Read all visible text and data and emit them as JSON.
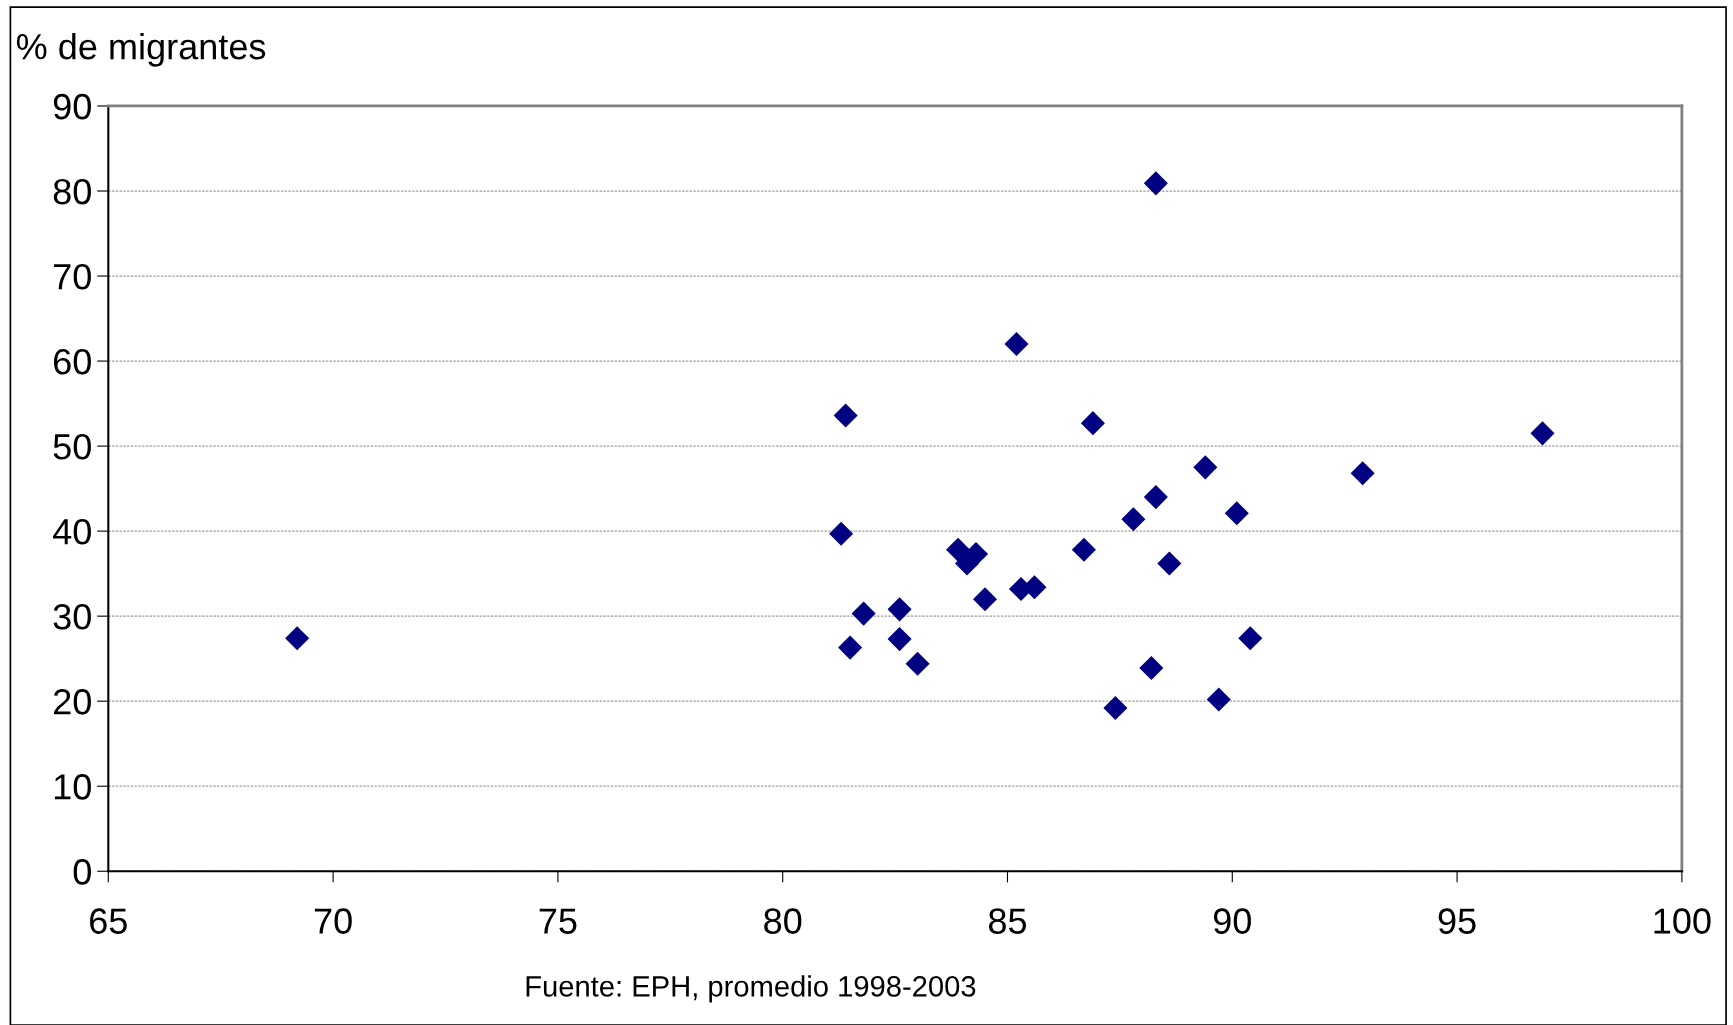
{
  "chart_data": {
    "type": "scatter",
    "ylabel": "% de migrantes",
    "x": [
      69.2,
      81.4,
      81.3,
      81.5,
      81.8,
      82.6,
      82.6,
      83.0,
      83.9,
      84.3,
      84.1,
      84.5,
      85.2,
      85.3,
      85.6,
      86.9,
      86.7,
      87.4,
      87.8,
      88.3,
      88.3,
      88.2,
      88.6,
      89.4,
      90.1,
      89.7,
      90.4,
      92.9,
      96.9
    ],
    "values": [
      27.4,
      53.6,
      39.7,
      26.3,
      30.3,
      30.8,
      27.3,
      24.4,
      37.8,
      37.3,
      36.2,
      32.0,
      62.0,
      33.2,
      33.4,
      52.7,
      37.8,
      19.2,
      41.4,
      80.9,
      44.0,
      23.9,
      36.2,
      47.5,
      42.1,
      20.2,
      27.4,
      46.8,
      51.5
    ],
    "color": "#000080",
    "marker": "diamond",
    "xlim": [
      65,
      100
    ],
    "xticks": [
      65,
      70,
      75,
      80,
      85,
      90,
      95,
      100
    ],
    "ylim": [
      0,
      90
    ],
    "yticks": [
      0,
      10,
      20,
      30,
      40,
      50,
      60,
      70,
      80,
      90
    ],
    "grid": "y",
    "legend": false,
    "annotations": [
      "Fuente: EPH, promedio 1998-2003"
    ]
  }
}
